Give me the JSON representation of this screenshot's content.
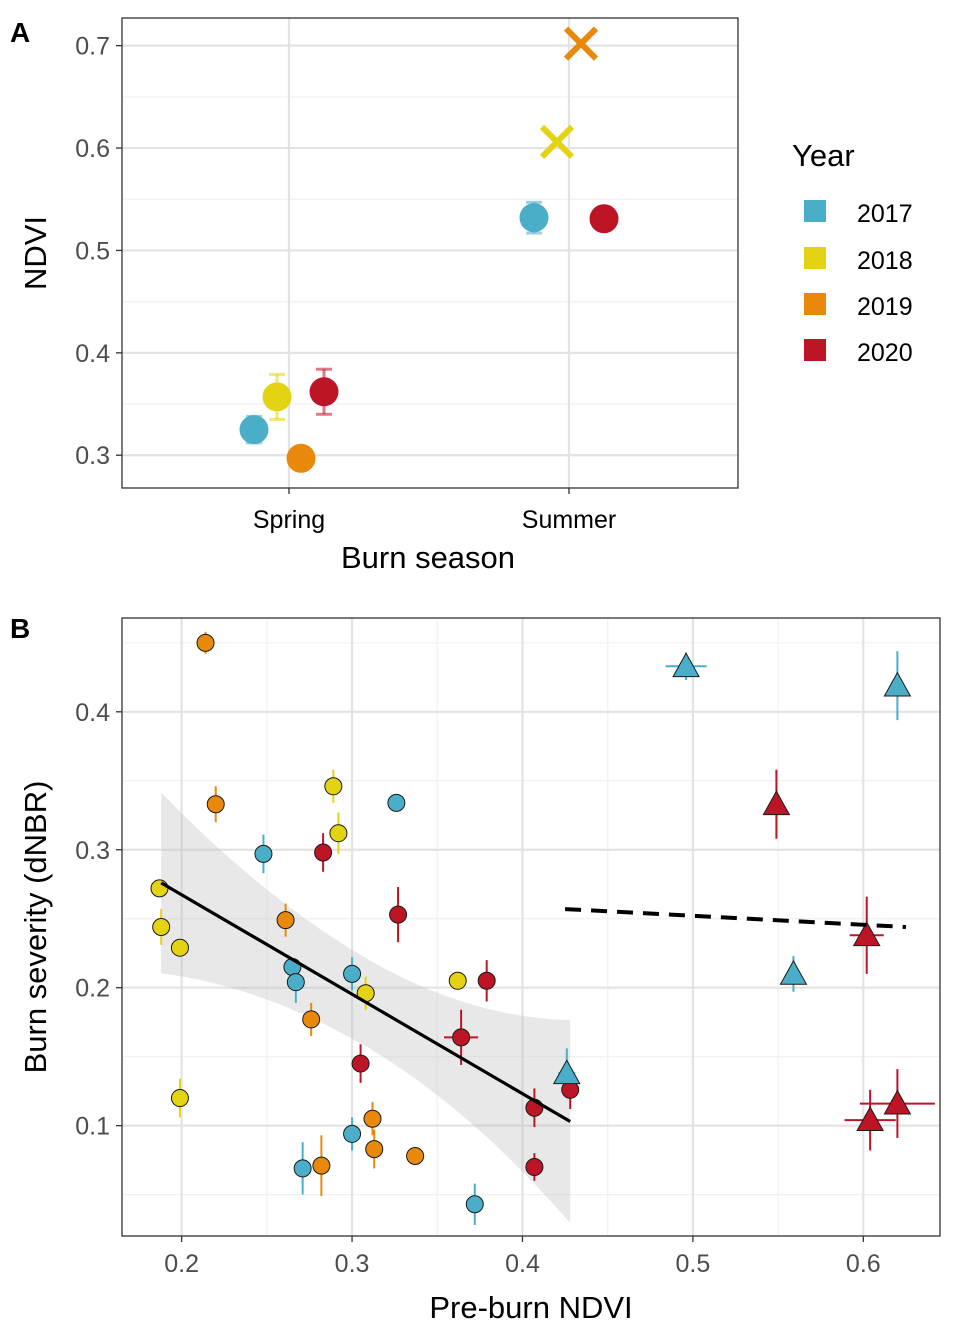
{
  "panel_a_tag": "A",
  "panel_b_tag": "B",
  "legend": {
    "title": "Year",
    "items": [
      {
        "label": "2017",
        "color": "#4aaec9"
      },
      {
        "label": "2018",
        "color": "#e3d312"
      },
      {
        "label": "2019",
        "color": "#e8890c"
      },
      {
        "label": "2020",
        "color": "#bd1426"
      }
    ]
  },
  "chart_data": [
    {
      "type": "scatter",
      "panel": "A",
      "xlabel": "Burn season",
      "ylabel": "NDVI",
      "categories": [
        "Spring",
        "Summer"
      ],
      "y_ticks": [
        "0.3",
        "0.4",
        "0.5",
        "0.6",
        "0.7"
      ],
      "ylim": [
        0.268,
        0.727
      ],
      "grid": true,
      "legend_position": "right",
      "points": [
        {
          "category": "Spring",
          "series": "2017",
          "y": 0.325,
          "err": 0.013,
          "shape": "circle"
        },
        {
          "category": "Spring",
          "series": "2018",
          "y": 0.357,
          "err": 0.022,
          "shape": "circle"
        },
        {
          "category": "Spring",
          "series": "2019",
          "y": 0.297,
          "err": 0.0,
          "shape": "circle"
        },
        {
          "category": "Spring",
          "series": "2020",
          "y": 0.362,
          "err": 0.022,
          "shape": "circle"
        },
        {
          "category": "Summer",
          "series": "2017",
          "y": 0.532,
          "err": 0.015,
          "shape": "circle"
        },
        {
          "category": "Summer",
          "series": "2018",
          "y": 0.606,
          "err": 0.0,
          "shape": "cross"
        },
        {
          "category": "Summer",
          "series": "2019",
          "y": 0.702,
          "err": 0.0,
          "shape": "cross"
        },
        {
          "category": "Summer",
          "series": "2020",
          "y": 0.531,
          "err": 0.0,
          "shape": "circle"
        }
      ]
    },
    {
      "type": "scatter",
      "panel": "B",
      "xlabel": "Pre-burn NDVI",
      "ylabel": "Burn severity (dNBR)",
      "x_ticks": [
        "0.2",
        "0.3",
        "0.4",
        "0.5",
        "0.6"
      ],
      "y_ticks": [
        "0.1",
        "0.2",
        "0.3",
        "0.4"
      ],
      "xlim": [
        0.165,
        0.645
      ],
      "ylim": [
        0.02,
        0.468
      ],
      "grid": true,
      "points": [
        {
          "x": 0.214,
          "y": 0.45,
          "ye": 0.008,
          "xe": 0.0,
          "series": "2019",
          "shape": "circle"
        },
        {
          "x": 0.22,
          "y": 0.333,
          "ye": 0.013,
          "xe": 0.0,
          "series": "2019",
          "shape": "circle"
        },
        {
          "x": 0.289,
          "y": 0.346,
          "ye": 0.012,
          "xe": 0.0,
          "series": "2018",
          "shape": "circle"
        },
        {
          "x": 0.326,
          "y": 0.334,
          "ye": 0.0,
          "xe": 0.0,
          "series": "2017",
          "shape": "circle"
        },
        {
          "x": 0.292,
          "y": 0.312,
          "ye": 0.015,
          "xe": 0.0,
          "series": "2018",
          "shape": "circle"
        },
        {
          "x": 0.248,
          "y": 0.297,
          "ye": 0.014,
          "xe": 0.0,
          "series": "2017",
          "shape": "circle"
        },
        {
          "x": 0.283,
          "y": 0.298,
          "ye": 0.014,
          "xe": 0.0,
          "series": "2020",
          "shape": "circle"
        },
        {
          "x": 0.187,
          "y": 0.272,
          "ye": 0.0,
          "xe": 0.0,
          "series": "2018",
          "shape": "circle"
        },
        {
          "x": 0.327,
          "y": 0.253,
          "ye": 0.02,
          "xe": 0.0,
          "series": "2020",
          "shape": "circle"
        },
        {
          "x": 0.261,
          "y": 0.249,
          "ye": 0.012,
          "xe": 0.0,
          "series": "2019",
          "shape": "circle"
        },
        {
          "x": 0.188,
          "y": 0.244,
          "ye": 0.013,
          "xe": 0.0,
          "series": "2018",
          "shape": "circle"
        },
        {
          "x": 0.199,
          "y": 0.229,
          "ye": 0.0,
          "xe": 0.0,
          "series": "2018",
          "shape": "circle"
        },
        {
          "x": 0.265,
          "y": 0.215,
          "ye": 0.0,
          "xe": 0.0,
          "series": "2017",
          "shape": "circle"
        },
        {
          "x": 0.3,
          "y": 0.21,
          "ye": 0.012,
          "xe": 0.0,
          "series": "2017",
          "shape": "circle"
        },
        {
          "x": 0.362,
          "y": 0.205,
          "ye": 0.0,
          "xe": 0.0,
          "series": "2018",
          "shape": "circle"
        },
        {
          "x": 0.379,
          "y": 0.205,
          "ye": 0.015,
          "xe": 0.0,
          "series": "2020",
          "shape": "circle"
        },
        {
          "x": 0.267,
          "y": 0.204,
          "ye": 0.015,
          "xe": 0.0,
          "series": "2017",
          "shape": "circle"
        },
        {
          "x": 0.308,
          "y": 0.196,
          "ye": 0.012,
          "xe": 0.0,
          "series": "2018",
          "shape": "circle"
        },
        {
          "x": 0.276,
          "y": 0.177,
          "ye": 0.012,
          "xe": 0.0,
          "series": "2019",
          "shape": "circle"
        },
        {
          "x": 0.364,
          "y": 0.164,
          "ye": 0.02,
          "xe": 0.01,
          "series": "2020",
          "shape": "circle"
        },
        {
          "x": 0.305,
          "y": 0.145,
          "ye": 0.014,
          "xe": 0.0,
          "series": "2020",
          "shape": "circle"
        },
        {
          "x": 0.428,
          "y": 0.126,
          "ye": 0.014,
          "xe": 0.0,
          "series": "2020",
          "shape": "circle"
        },
        {
          "x": 0.407,
          "y": 0.113,
          "ye": 0.014,
          "xe": 0.005,
          "series": "2020",
          "shape": "circle"
        },
        {
          "x": 0.199,
          "y": 0.12,
          "ye": 0.014,
          "xe": 0.0,
          "series": "2018",
          "shape": "circle"
        },
        {
          "x": 0.312,
          "y": 0.105,
          "ye": 0.012,
          "xe": 0.0,
          "series": "2019",
          "shape": "circle"
        },
        {
          "x": 0.3,
          "y": 0.094,
          "ye": 0.012,
          "xe": 0.0,
          "series": "2017",
          "shape": "circle"
        },
        {
          "x": 0.313,
          "y": 0.083,
          "ye": 0.014,
          "xe": 0.0,
          "series": "2019",
          "shape": "circle"
        },
        {
          "x": 0.337,
          "y": 0.078,
          "ye": 0.0,
          "xe": 0.0,
          "series": "2019",
          "shape": "circle"
        },
        {
          "x": 0.282,
          "y": 0.071,
          "ye": 0.022,
          "xe": 0.0,
          "series": "2019",
          "shape": "circle"
        },
        {
          "x": 0.271,
          "y": 0.069,
          "ye": 0.019,
          "xe": 0.0,
          "series": "2017",
          "shape": "circle"
        },
        {
          "x": 0.407,
          "y": 0.07,
          "ye": 0.01,
          "xe": 0.005,
          "series": "2020",
          "shape": "circle"
        },
        {
          "x": 0.372,
          "y": 0.043,
          "ye": 0.015,
          "xe": 0.0,
          "series": "2017",
          "shape": "circle"
        },
        {
          "x": 0.496,
          "y": 0.433,
          "ye": 0.01,
          "xe": 0.012,
          "series": "2017",
          "shape": "triangle"
        },
        {
          "x": 0.62,
          "y": 0.419,
          "ye": 0.025,
          "xe": 0.0,
          "series": "2017",
          "shape": "triangle"
        },
        {
          "x": 0.549,
          "y": 0.333,
          "ye": 0.025,
          "xe": 0.0,
          "series": "2020",
          "shape": "triangle"
        },
        {
          "x": 0.602,
          "y": 0.238,
          "ye": 0.028,
          "xe": 0.01,
          "series": "2020",
          "shape": "triangle"
        },
        {
          "x": 0.559,
          "y": 0.21,
          "ye": 0.013,
          "xe": 0.0,
          "series": "2017",
          "shape": "triangle"
        },
        {
          "x": 0.426,
          "y": 0.138,
          "ye": 0.018,
          "xe": 0.005,
          "series": "2017",
          "shape": "triangle"
        },
        {
          "x": 0.62,
          "y": 0.116,
          "ye": 0.025,
          "xe": 0.022,
          "series": "2020",
          "shape": "triangle"
        },
        {
          "x": 0.604,
          "y": 0.104,
          "ye": 0.022,
          "xe": 0.015,
          "series": "2020",
          "shape": "triangle"
        }
      ],
      "fit_spring": {
        "x": [
          0.188,
          0.428
        ],
        "y": [
          0.276,
          0.103
        ],
        "ci_lower": [
          0.211,
          0.03
        ],
        "ci_upper": [
          0.342,
          0.177
        ]
      },
      "fit_summer": {
        "x": [
          0.425,
          0.625
        ],
        "y": [
          0.257,
          0.244
        ]
      }
    }
  ]
}
